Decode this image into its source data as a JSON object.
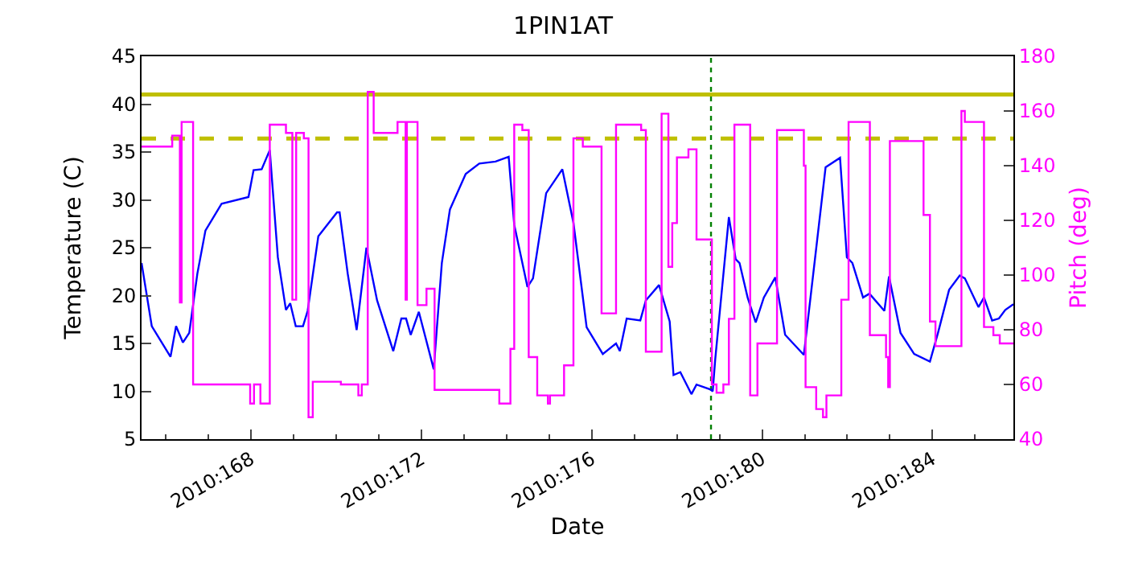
{
  "chart_data": {
    "type": "line",
    "title": "1PIN1AT",
    "xlabel": "Date",
    "ylabel": "Temperature (C)",
    "y2label": "Pitch (deg)",
    "xlim": [
      "2010-06-14T10:19",
      "2010-07-04T21:36"
    ],
    "xticks": [
      {
        "value": "2010-06-17",
        "label": "2010:168"
      },
      {
        "value": "2010-06-21",
        "label": "2010:172"
      },
      {
        "value": "2010-06-25",
        "label": "2010:176"
      },
      {
        "value": "2010-06-29",
        "label": "2010:180"
      },
      {
        "value": "2010-07-03",
        "label": "2010:184"
      }
    ],
    "ylim": [
      5,
      45
    ],
    "yticks": [
      5,
      10,
      15,
      20,
      25,
      30,
      35,
      40,
      45
    ],
    "y2lim": [
      40,
      180
    ],
    "y2ticks": [
      40,
      60,
      80,
      100,
      120,
      140,
      160,
      180
    ],
    "grid": false,
    "series": [
      {
        "type": "line",
        "color": "#0000ff",
        "x": [
          "2010-06-14T10:19",
          "2010-06-14T16:05",
          "2010-06-15T02:38",
          "2010-06-15T05:46",
          "2010-06-15T09:36",
          "2010-06-15T13:12",
          "2010-06-15T17:46",
          "2010-06-15T22:19",
          "2010-06-16T07:26",
          "2010-06-16T22:34",
          "2010-06-17T01:26",
          "2010-06-17T06:00",
          "2010-06-17T10:34",
          "2010-06-17T15:07",
          "2010-06-17T19:41",
          "2010-06-17T22:05",
          "2010-06-18T01:12",
          "2010-06-18T05:17",
          "2010-06-18T07:55",
          "2010-06-18T13:55",
          "2010-06-19T00:29",
          "2010-06-19T01:55",
          "2010-06-19T06:29",
          "2010-06-19T11:31",
          "2010-06-19T17:02",
          "2010-06-19T23:02",
          "2010-06-20T08:10",
          "2010-06-20T12:43",
          "2010-06-20T15:22",
          "2010-06-20T18:00",
          "2010-06-20T22:34",
          "2010-06-21T06:58",
          "2010-06-21T11:31",
          "2010-06-21T16:05",
          "2010-06-22T00:58",
          "2010-06-22T08:38",
          "2010-06-22T17:46",
          "2010-06-23T01:12",
          "2010-06-23T04:19",
          "2010-06-23T11:46",
          "2010-06-23T14:53",
          "2010-06-23T22:19",
          "2010-06-24T07:26",
          "2010-06-24T13:41",
          "2010-06-24T21:07",
          "2010-06-25T06:14",
          "2010-06-25T13:41",
          "2010-06-25T15:50",
          "2010-06-25T19:41",
          "2010-06-26T03:22",
          "2010-06-26T06:29",
          "2010-06-26T13:55",
          "2010-06-26T19:55",
          "2010-06-26T22:05",
          "2010-06-27T01:55",
          "2010-06-27T08:10",
          "2010-06-27T11:02",
          "2010-06-27T18:43",
          "2010-06-27T20:10",
          "2010-06-27T21:36",
          "2010-06-28T05:17",
          "2010-06-28T09:07",
          "2010-06-28T11:17",
          "2010-06-28T15:50",
          "2010-06-28T20:24",
          "2010-06-29T00:58",
          "2010-06-29T07:26",
          "2010-06-29T12:58",
          "2010-06-29T23:31",
          "2010-06-30T11:46",
          "2010-06-30T19:55",
          "2010-06-30T23:46",
          "2010-07-01T02:53",
          "2010-07-01T08:53",
          "2010-07-01T12:29",
          "2010-07-01T20:53",
          "2010-07-01T23:31",
          "2010-07-02T06:00",
          "2010-07-02T13:41",
          "2010-07-02T22:34",
          "2010-07-03T03:07",
          "2010-07-03T09:22",
          "2010-07-03T15:22",
          "2010-07-03T18:14",
          "2010-07-04T01:55",
          "2010-07-04T05:02",
          "2010-07-04T09:36",
          "2010-07-04T13:26",
          "2010-07-04T17:02",
          "2010-07-04T21:36"
        ],
        "values": [
          23.4,
          16.8,
          13.6,
          16.8,
          15.1,
          16.1,
          22.3,
          26.8,
          29.6,
          30.3,
          33.1,
          33.2,
          35.2,
          24,
          18.5,
          19.2,
          16.8,
          16.8,
          18.4,
          26.2,
          28.7,
          28.7,
          22.3,
          16.4,
          25,
          19.5,
          14.2,
          17.6,
          17.6,
          15.9,
          18.3,
          12.3,
          23.4,
          29,
          32.7,
          33.8,
          34,
          34.5,
          27.4,
          20.9,
          21.8,
          30.7,
          33.2,
          27.6,
          16.7,
          13.9,
          15,
          14.2,
          17.6,
          17.4,
          19.5,
          21.1,
          17.3,
          11.7,
          12,
          9.7,
          10.7,
          10.2,
          10,
          13.4,
          28.2,
          23.8,
          23.4,
          19.8,
          17.2,
          19.8,
          21.9,
          15.9,
          13.8,
          33.4,
          34.4,
          24,
          23.4,
          19.8,
          20.2,
          18.4,
          22,
          16.1,
          13.9,
          13.1,
          16.1,
          20.6,
          22.1,
          21.8,
          18.8,
          19.8,
          17.4,
          17.6,
          18.5,
          19.1
        ]
      },
      {
        "type": "step",
        "axis": "y2",
        "color": "#ff00ff",
        "x": [
          "2010-06-14T10:19",
          "2010-06-15T03:36",
          "2010-06-15T07:55",
          "2010-06-15T08:53",
          "2010-06-15T15:22",
          "2010-06-16T23:31",
          "2010-06-17T01:41",
          "2010-06-17T05:17",
          "2010-06-17T10:34",
          "2010-06-17T19:41",
          "2010-06-17T23:17",
          "2010-06-18T01:26",
          "2010-06-18T05:46",
          "2010-06-18T08:24",
          "2010-06-18T10:48",
          "2010-06-19T02:38",
          "2010-06-19T12:29",
          "2010-06-19T14:24",
          "2010-06-19T17:46",
          "2010-06-19T21:07",
          "2010-06-20T10:34",
          "2010-06-20T15:07",
          "2010-06-20T15:50",
          "2010-06-20T21:50",
          "2010-06-21T02:53",
          "2010-06-21T07:26",
          "2010-06-22T19:55",
          "2010-06-23T02:10",
          "2010-06-23T04:19",
          "2010-06-23T08:53",
          "2010-06-23T12:29",
          "2010-06-23T17:17",
          "2010-06-23T23:17",
          "2010-06-24T00:29",
          "2010-06-24T08:24",
          "2010-06-24T13:41",
          "2010-06-24T18:58",
          "2010-06-25T05:31",
          "2010-06-25T13:41",
          "2010-06-26T03:50",
          "2010-06-26T06:29",
          "2010-06-26T15:22",
          "2010-06-26T19:12",
          "2010-06-26T21:22",
          "2010-06-27T00:00",
          "2010-06-27T06:29",
          "2010-06-27T11:02",
          "2010-06-27T19:41",
          "2010-06-27T22:19",
          "2010-06-28T02:10",
          "2010-06-28T05:17",
          "2010-06-28T08:24",
          "2010-06-28T17:17",
          "2010-06-28T21:22",
          "2010-06-29T08:24",
          "2010-06-29T23:31",
          "2010-06-30T00:29",
          "2010-06-30T06:29",
          "2010-06-30T10:19",
          "2010-06-30T12:14",
          "2010-06-30T20:38",
          "2010-07-01T00:43",
          "2010-07-01T12:43",
          "2010-07-01T21:50",
          "2010-07-01T23:02",
          "2010-07-02T00:00",
          "2010-07-02T18:58",
          "2010-07-02T22:34",
          "2010-07-03T01:41",
          "2010-07-03T16:19",
          "2010-07-03T18:14",
          "2010-07-04T05:02",
          "2010-07-04T10:19",
          "2010-07-04T13:55",
          "2010-07-04T21:36"
        ],
        "values": [
          147,
          151,
          90,
          156,
          60,
          53,
          60,
          53,
          155,
          152,
          91,
          152,
          150,
          48,
          61,
          60,
          56,
          60,
          167,
          152,
          156,
          91,
          156,
          89,
          95,
          58,
          53,
          73,
          155,
          153,
          70,
          56,
          53,
          56,
          67,
          150,
          147,
          86,
          155,
          153,
          72,
          159,
          103,
          119,
          143,
          146,
          113,
          60,
          57,
          60,
          84,
          155,
          56,
          75,
          153,
          140,
          59,
          51,
          48,
          56,
          91,
          156,
          78,
          70,
          59,
          149,
          122,
          83,
          74,
          160,
          156,
          81,
          78,
          75,
          75
        ]
      }
    ],
    "ref_lines": [
      {
        "axis": "y",
        "value": 41,
        "color": "#bfbf00",
        "line_style": "solid"
      },
      {
        "axis": "y",
        "value": 36.4,
        "color": "#bfbf00",
        "line_style": "dashed"
      },
      {
        "axis": "x",
        "value": "2010-06-27T19:12",
        "color": "#008000",
        "line_style": "dotted"
      }
    ]
  }
}
